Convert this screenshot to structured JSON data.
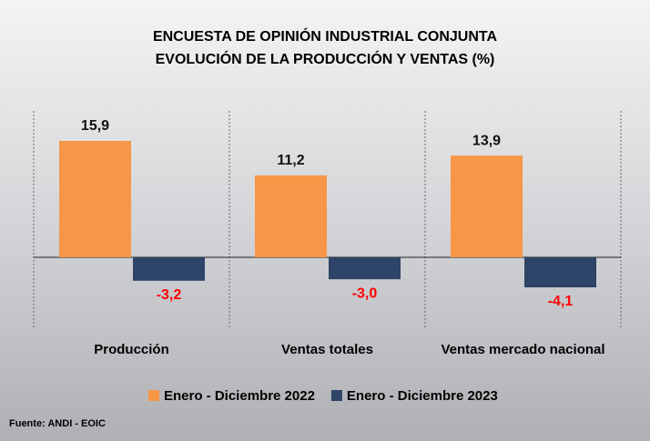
{
  "chart_data": {
    "type": "bar",
    "title": "ENCUESTA DE OPINIÓN INDUSTRIAL CONJUNTA",
    "subtitle": "EVOLUCIÓN DE LA PRODUCCIÓN Y VENTAS (%)",
    "categories": [
      "Producción",
      "Ventas totales",
      "Ventas mercado nacional"
    ],
    "series": [
      {
        "name": "Enero - Diciembre 2022",
        "color": "#f79646",
        "values": [
          15.9,
          11.2,
          13.9
        ],
        "value_labels": [
          "15,9",
          "11,2",
          "13,9"
        ]
      },
      {
        "name": "Enero - Diciembre 2023",
        "color": "#2e4468",
        "values": [
          -3.2,
          -3.0,
          -4.1
        ],
        "value_labels": [
          "-3,2",
          "-3,0",
          "-4,1"
        ]
      }
    ],
    "source": "Fuente: ANDI - EOIC"
  }
}
